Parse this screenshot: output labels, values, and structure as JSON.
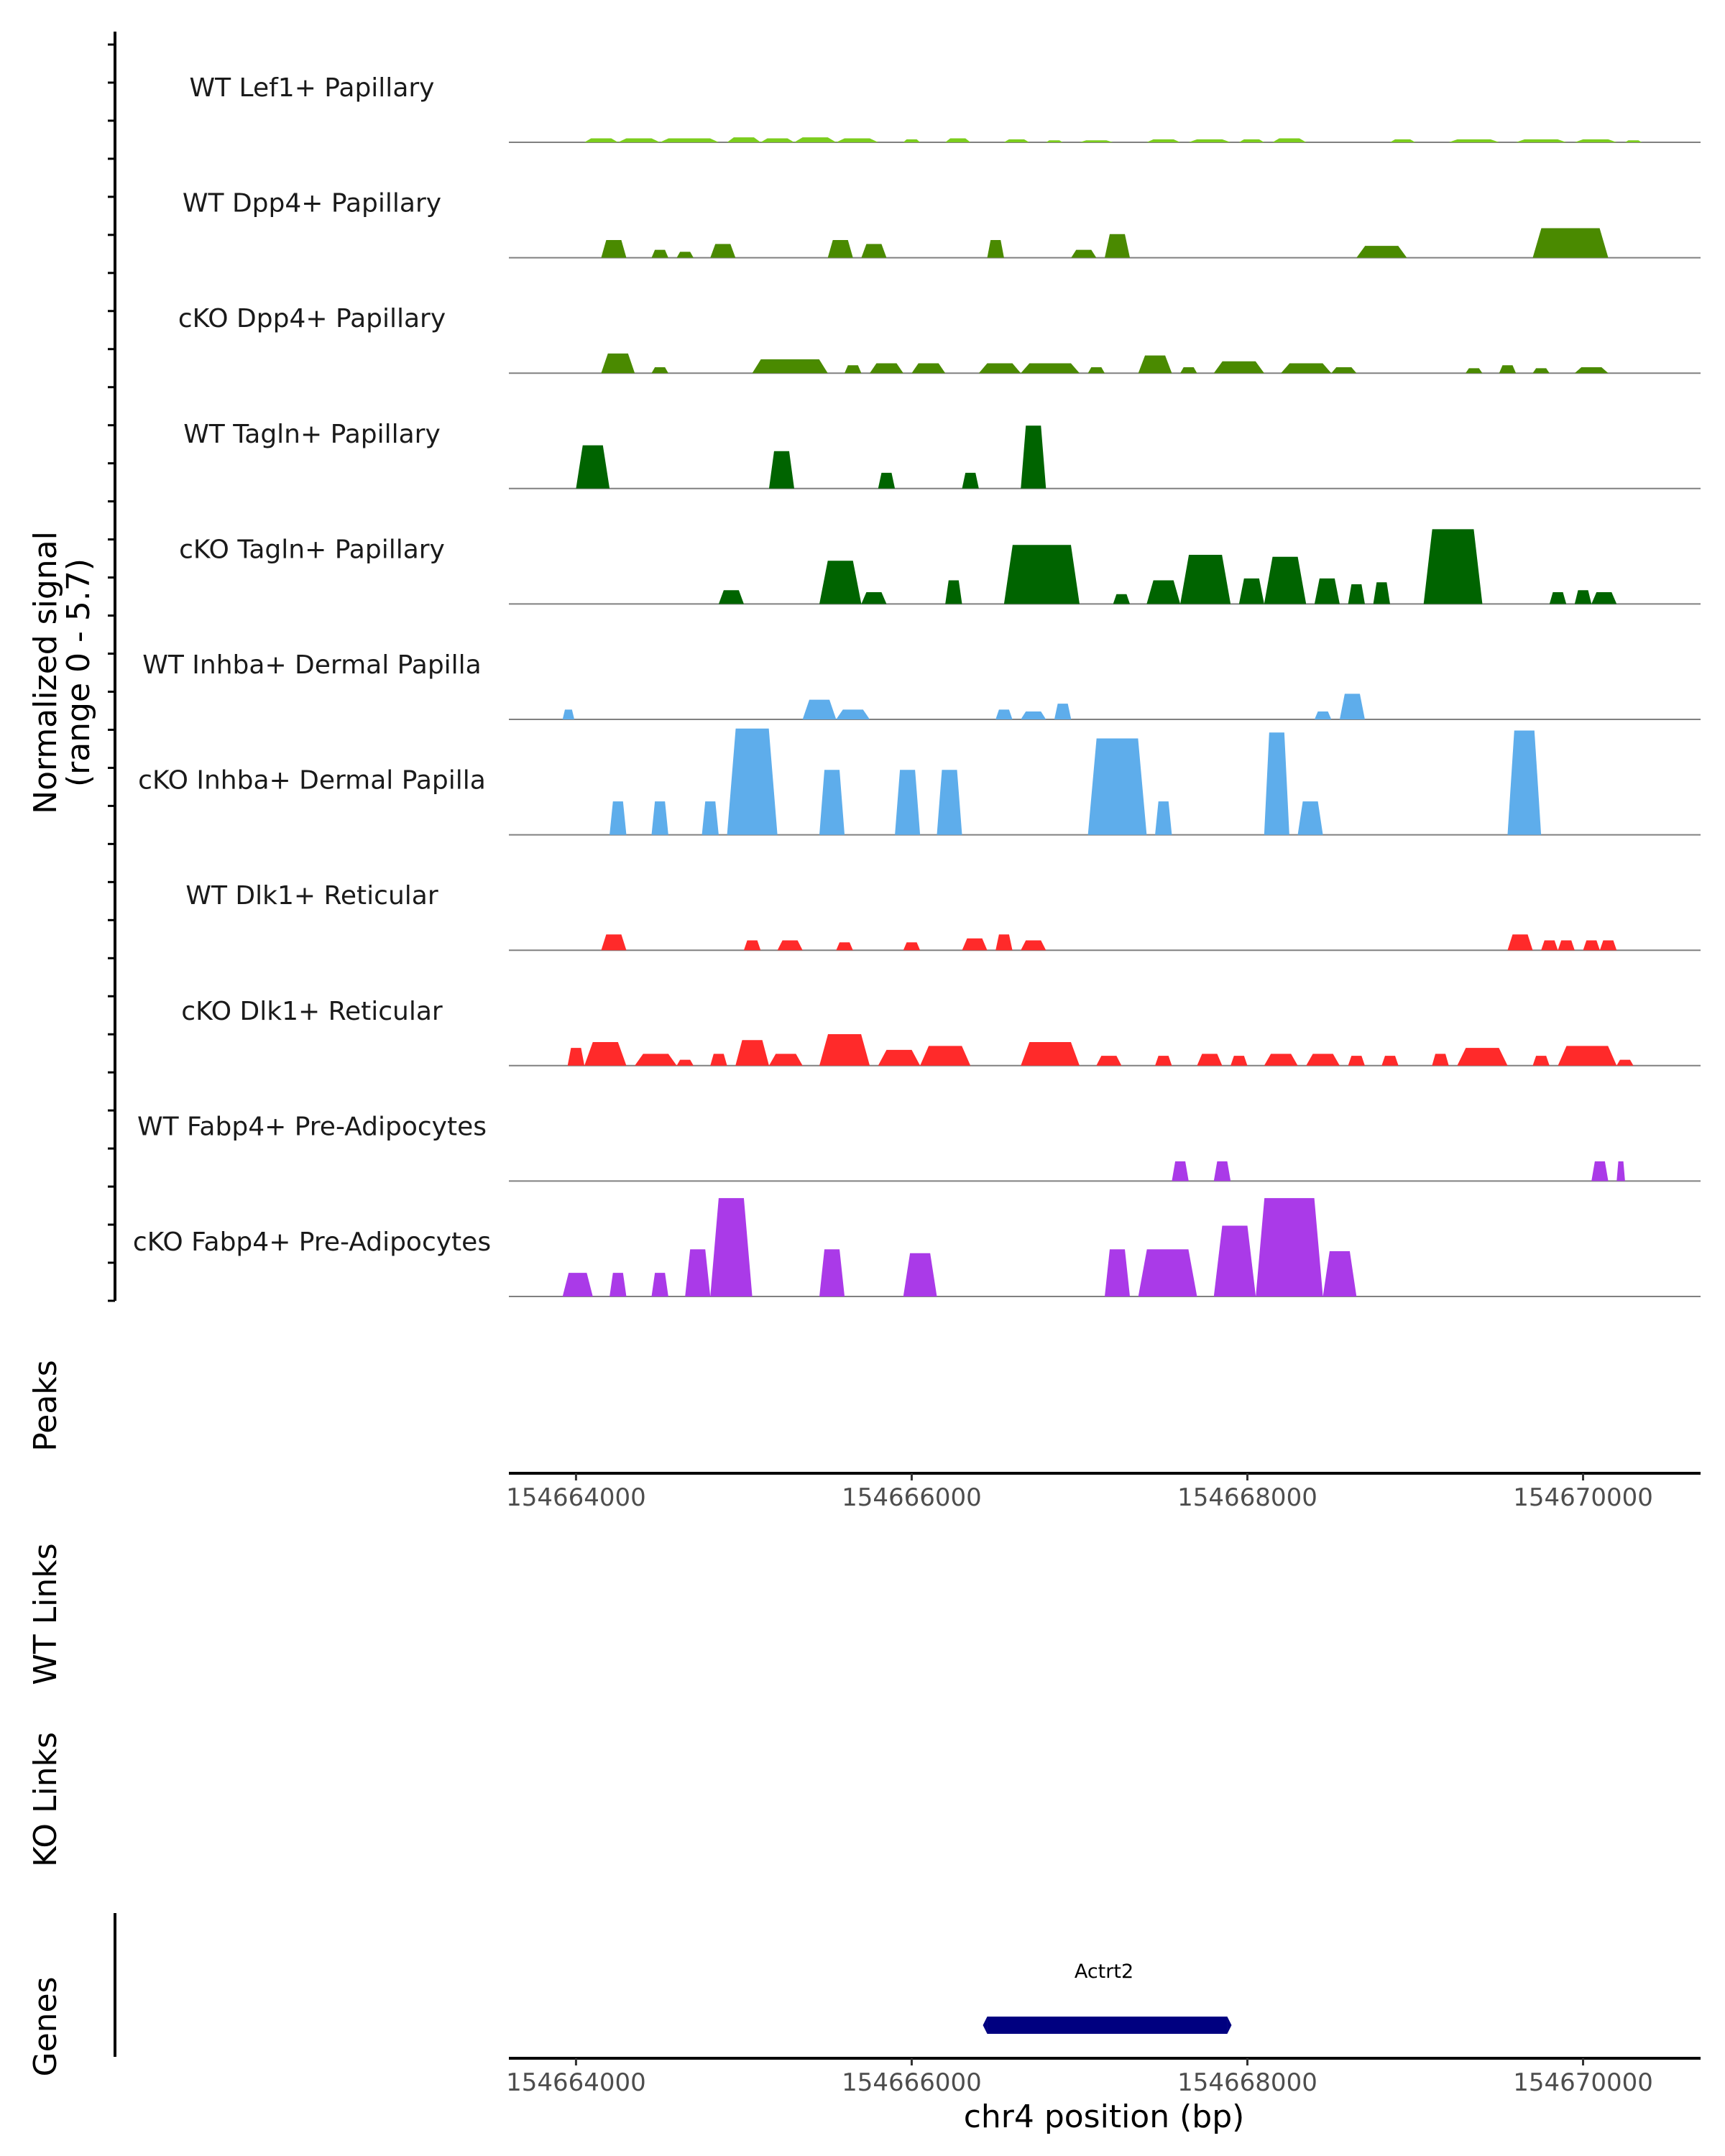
{
  "chart_data": {
    "type": "area",
    "y_axis": {
      "title_line1": "Normalized signal",
      "title_line2": "(range 0 - 5.7)",
      "range": [
        0,
        5.7
      ]
    },
    "xlim": [
      154663600,
      154670700
    ],
    "x_ticks": [
      154664000,
      154666000,
      154668000,
      154670000
    ],
    "x_tick_labels": [
      "154664000",
      "154666000",
      "154668000",
      "154670000"
    ],
    "xlabel": "chr4 position (bp)",
    "panels": {
      "peaks": "Peaks",
      "wt_links": "WT Links",
      "ko_links": "KO Links",
      "genes": "Genes"
    },
    "gene": {
      "name": "Actrt2",
      "start": 154666450,
      "end": 154667880,
      "color": "#000080",
      "strand": "+"
    },
    "series": [
      {
        "name": "WT Lef1+ Papillary",
        "color": "#7ccd1e",
        "peaks": [
          [
            154664050,
            154664250,
            0.2
          ],
          [
            154664250,
            154664500,
            0.2
          ],
          [
            154664500,
            154664850,
            0.2
          ],
          [
            154664900,
            154665100,
            0.25
          ],
          [
            154665100,
            154665300,
            0.2
          ],
          [
            154665300,
            154665550,
            0.25
          ],
          [
            154665550,
            154665800,
            0.2
          ],
          [
            154665950,
            154666050,
            0.15
          ],
          [
            154666200,
            154666350,
            0.2
          ],
          [
            154666550,
            154666700,
            0.15
          ],
          [
            154666800,
            154666900,
            0.1
          ],
          [
            154667000,
            154667200,
            0.1
          ],
          [
            154667400,
            154667600,
            0.15
          ],
          [
            154667650,
            154667900,
            0.15
          ],
          [
            154667950,
            154668100,
            0.15
          ],
          [
            154668150,
            154668350,
            0.2
          ],
          [
            154668850,
            154669000,
            0.15
          ],
          [
            154669200,
            154669500,
            0.15
          ],
          [
            154669600,
            154669900,
            0.15
          ],
          [
            154669950,
            154670200,
            0.15
          ],
          [
            154670250,
            154670350,
            0.1
          ]
        ]
      },
      {
        "name": "WT Dpp4+ Papillary",
        "color": "#4a8a00",
        "peaks": [
          [
            154664150,
            154664300,
            0.9
          ],
          [
            154664450,
            154664550,
            0.4
          ],
          [
            154664600,
            154664700,
            0.3
          ],
          [
            154664800,
            154664950,
            0.7
          ],
          [
            154665500,
            154665650,
            0.9
          ],
          [
            154665700,
            154665850,
            0.7
          ],
          [
            154666450,
            154666550,
            0.9
          ],
          [
            154666950,
            154667100,
            0.4
          ],
          [
            154667150,
            154667300,
            1.2
          ],
          [
            154668650,
            154668950,
            0.6
          ],
          [
            154669700,
            154670150,
            1.5
          ]
        ]
      },
      {
        "name": "cKO Dpp4+ Papillary",
        "color": "#4a8a00",
        "peaks": [
          [
            154664150,
            154664350,
            1.0
          ],
          [
            154664450,
            154664550,
            0.3
          ],
          [
            154665050,
            154665500,
            0.7
          ],
          [
            154665600,
            154665700,
            0.4
          ],
          [
            154665750,
            154665950,
            0.5
          ],
          [
            154666000,
            154666200,
            0.5
          ],
          [
            154666400,
            154666650,
            0.5
          ],
          [
            154666650,
            154667000,
            0.5
          ],
          [
            154667050,
            154667150,
            0.3
          ],
          [
            154667350,
            154667550,
            0.9
          ],
          [
            154667600,
            154667700,
            0.3
          ],
          [
            154667800,
            154668100,
            0.6
          ],
          [
            154668200,
            154668500,
            0.5
          ],
          [
            154668500,
            154668650,
            0.3
          ],
          [
            154669300,
            154669400,
            0.25
          ],
          [
            154669500,
            154669600,
            0.4
          ],
          [
            154669700,
            154669800,
            0.25
          ],
          [
            154669950,
            154670150,
            0.3
          ]
        ]
      },
      {
        "name": "WT Tagln+ Papillary",
        "color": "#006400",
        "peaks": [
          [
            154664000,
            154664200,
            2.2
          ],
          [
            154665150,
            154665300,
            1.9
          ],
          [
            154665800,
            154665900,
            0.8
          ],
          [
            154666300,
            154666400,
            0.8
          ],
          [
            154666650,
            154666800,
            3.2
          ]
        ]
      },
      {
        "name": "cKO Tagln+ Papillary",
        "color": "#006400",
        "peaks": [
          [
            154664850,
            154665000,
            0.7
          ],
          [
            154665450,
            154665700,
            2.2
          ],
          [
            154665700,
            154665850,
            0.6
          ],
          [
            154666200,
            154666300,
            1.2
          ],
          [
            154666550,
            154667000,
            3.0
          ],
          [
            154667200,
            154667300,
            0.5
          ],
          [
            154667400,
            154667600,
            1.2
          ],
          [
            154667600,
            154667900,
            2.5
          ],
          [
            154667950,
            154668100,
            1.3
          ],
          [
            154668100,
            154668350,
            2.4
          ],
          [
            154668400,
            154668550,
            1.3
          ],
          [
            154668600,
            154668700,
            1.0
          ],
          [
            154668750,
            154668850,
            1.1
          ],
          [
            154669050,
            154669400,
            3.8
          ],
          [
            154669800,
            154669900,
            0.6
          ],
          [
            154669950,
            154670050,
            0.7
          ],
          [
            154670050,
            154670200,
            0.6
          ]
        ]
      },
      {
        "name": "WT Inhba+ Dermal Papilla",
        "color": "#5eadeb",
        "peaks": [
          [
            154663920,
            154663990,
            0.5
          ],
          [
            154665350,
            154665550,
            1.0
          ],
          [
            154665550,
            154665750,
            0.5
          ],
          [
            154666500,
            154666600,
            0.5
          ],
          [
            154666650,
            154666800,
            0.4
          ],
          [
            154666850,
            154666950,
            0.8
          ],
          [
            154668400,
            154668500,
            0.4
          ],
          [
            154668550,
            154668700,
            1.3
          ]
        ]
      },
      {
        "name": "cKO Inhba+ Dermal Papilla",
        "color": "#5eadeb",
        "peaks": [
          [
            154664200,
            154664300,
            1.7
          ],
          [
            154664450,
            154664550,
            1.7
          ],
          [
            154664750,
            154664850,
            1.7
          ],
          [
            154664900,
            154665200,
            5.4
          ],
          [
            154665450,
            154665600,
            3.3
          ],
          [
            154665900,
            154666050,
            3.3
          ],
          [
            154666150,
            154666300,
            3.3
          ],
          [
            154667050,
            154667400,
            4.9
          ],
          [
            154667450,
            154667550,
            1.7
          ],
          [
            154668100,
            154668250,
            5.2
          ],
          [
            154668300,
            154668450,
            1.7
          ],
          [
            154669550,
            154669750,
            5.3
          ]
        ]
      },
      {
        "name": "WT Dlk1+ Reticular",
        "color": "#ff2a2a",
        "peaks": [
          [
            154664150,
            154664300,
            0.8
          ],
          [
            154665000,
            154665100,
            0.5
          ],
          [
            154665200,
            154665350,
            0.5
          ],
          [
            154665550,
            154665650,
            0.4
          ],
          [
            154665950,
            154666050,
            0.4
          ],
          [
            154666300,
            154666450,
            0.6
          ],
          [
            154666500,
            154666600,
            0.8
          ],
          [
            154666650,
            154666800,
            0.5
          ],
          [
            154669550,
            154669700,
            0.8
          ],
          [
            154669750,
            154669850,
            0.5
          ],
          [
            154669850,
            154669950,
            0.5
          ],
          [
            154670000,
            154670100,
            0.5
          ],
          [
            154670100,
            154670200,
            0.5
          ]
        ]
      },
      {
        "name": "cKO Dlk1+ Reticular",
        "color": "#ff2a2a",
        "peaks": [
          [
            154663950,
            154664050,
            0.9
          ],
          [
            154664050,
            154664300,
            1.2
          ],
          [
            154664350,
            154664600,
            0.6
          ],
          [
            154664600,
            154664700,
            0.3
          ],
          [
            154664800,
            154664900,
            0.6
          ],
          [
            154664950,
            154665150,
            1.3
          ],
          [
            154665150,
            154665350,
            0.6
          ],
          [
            154665450,
            154665750,
            1.6
          ],
          [
            154665800,
            154666050,
            0.8
          ],
          [
            154666050,
            154666350,
            1.0
          ],
          [
            154666650,
            154667000,
            1.2
          ],
          [
            154667100,
            154667250,
            0.5
          ],
          [
            154667450,
            154667550,
            0.5
          ],
          [
            154667700,
            154667850,
            0.6
          ],
          [
            154667900,
            154668000,
            0.5
          ],
          [
            154668100,
            154668300,
            0.6
          ],
          [
            154668350,
            154668550,
            0.6
          ],
          [
            154668600,
            154668700,
            0.5
          ],
          [
            154668800,
            154668900,
            0.5
          ],
          [
            154669100,
            154669200,
            0.6
          ],
          [
            154669250,
            154669550,
            0.9
          ],
          [
            154669700,
            154669800,
            0.5
          ],
          [
            154669850,
            154670200,
            1.0
          ],
          [
            154670200,
            154670300,
            0.3
          ]
        ]
      },
      {
        "name": "WT Fabp4+ Pre-Adipocytes",
        "color": "#aa3ae8",
        "peaks": [
          [
            154667550,
            154667650,
            1.0
          ],
          [
            154667800,
            154667900,
            1.0
          ],
          [
            154670050,
            154670150,
            1.0
          ],
          [
            154670200,
            154670250,
            1.0
          ]
        ]
      },
      {
        "name": "cKO Fabp4+ Pre-Adipocytes",
        "color": "#aa3ae8",
        "peaks": [
          [
            154663920,
            154664100,
            1.2
          ],
          [
            154664200,
            154664300,
            1.2
          ],
          [
            154664450,
            154664550,
            1.2
          ],
          [
            154664650,
            154664800,
            2.4
          ],
          [
            154664800,
            154665050,
            5.0
          ],
          [
            154665450,
            154665600,
            2.4
          ],
          [
            154665950,
            154666150,
            2.2
          ],
          [
            154667150,
            154667300,
            2.4
          ],
          [
            154667350,
            154667700,
            2.4
          ],
          [
            154667800,
            154668050,
            3.6
          ],
          [
            154668050,
            154668450,
            5.0
          ],
          [
            154668450,
            154668650,
            2.3
          ]
        ]
      }
    ]
  }
}
